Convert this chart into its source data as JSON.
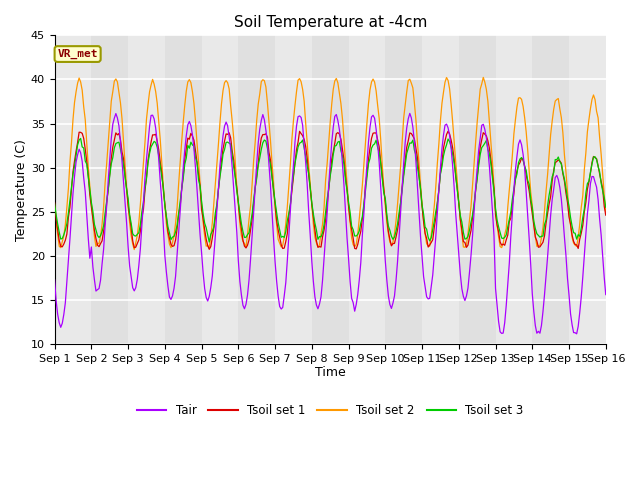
{
  "title": "Soil Temperature at -4cm",
  "xlabel": "Time",
  "ylabel": "Temperature (C)",
  "ylim": [
    10,
    45
  ],
  "xlim": [
    0,
    360
  ],
  "plot_bg": "#e0e0e0",
  "fig_bg": "#ffffff",
  "grid_color": "#ffffff",
  "annotation_text": "VR_met",
  "annotation_color": "#8B0000",
  "annotation_bg": "#ffffcc",
  "annotation_border": "#999900",
  "series_colors": [
    "#aa00ff",
    "#dd0000",
    "#ff9900",
    "#00cc00"
  ],
  "series_labels": [
    "Tair",
    "Tsoil set 1",
    "Tsoil set 2",
    "Tsoil set 3"
  ],
  "tick_labels": [
    "Sep 1",
    "Sep 2",
    "Sep 3",
    "Sep 4",
    "Sep 5",
    "Sep 6",
    "Sep 7",
    "Sep 8",
    "Sep 9",
    "Sep 10",
    "Sep 11",
    "Sep 12",
    "Sep 13",
    "Sep 14",
    "Sep 15",
    "Sep 16"
  ],
  "tick_positions": [
    0,
    24,
    48,
    72,
    96,
    120,
    144,
    168,
    192,
    216,
    240,
    264,
    288,
    312,
    336,
    360
  ],
  "yticks": [
    10,
    15,
    20,
    25,
    30,
    35,
    40,
    45
  ],
  "figsize": [
    6.4,
    4.8
  ],
  "dpi": 100
}
